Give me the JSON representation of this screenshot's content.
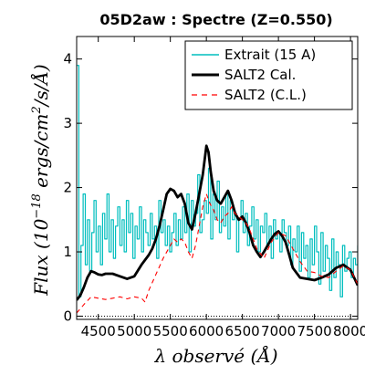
{
  "chart_data": {
    "type": "line",
    "title": "05D2aw : Spectre (Z=0.550)",
    "xlabel": "λ observé (Å)",
    "ylabel": "Flux (10^-18 ergs/cm²/s/Å)",
    "ylabel_parts": {
      "a": "Flux (10",
      "exp": "−18",
      "b": " ergs/cm",
      "sq": "2",
      "c": "/s/Å)"
    },
    "xlim": [
      4200,
      8100
    ],
    "ylim": [
      -0.05,
      4.35
    ],
    "xticks": [
      4500,
      5000,
      5500,
      6000,
      6500,
      7000,
      7500,
      8000
    ],
    "xtick_labels": [
      "4500",
      "5000",
      "5500",
      "6000",
      "6500",
      "7000",
      "7500",
      "8000"
    ],
    "yticks": [
      0,
      1,
      2,
      3,
      4
    ],
    "ytick_labels": [
      "0",
      "1",
      "2",
      "3",
      "4"
    ],
    "legend_position": "top-right",
    "series": [
      {
        "name": "Extrait (15 A)",
        "color": "#00bebe",
        "style": "solid",
        "x": [
          4200,
          4230,
          4260,
          4290,
          4320,
          4350,
          4380,
          4410,
          4440,
          4470,
          4500,
          4530,
          4560,
          4590,
          4620,
          4650,
          4680,
          4710,
          4740,
          4770,
          4800,
          4830,
          4860,
          4890,
          4920,
          4950,
          4980,
          5010,
          5040,
          5070,
          5100,
          5130,
          5160,
          5190,
          5220,
          5250,
          5280,
          5310,
          5340,
          5370,
          5400,
          5430,
          5460,
          5490,
          5520,
          5550,
          5580,
          5610,
          5640,
          5670,
          5700,
          5730,
          5760,
          5790,
          5820,
          5850,
          5880,
          5910,
          5940,
          5970,
          6000,
          6030,
          6060,
          6090,
          6120,
          6150,
          6180,
          6210,
          6240,
          6270,
          6300,
          6330,
          6360,
          6390,
          6420,
          6450,
          6480,
          6510,
          6540,
          6570,
          6600,
          6630,
          6660,
          6690,
          6720,
          6750,
          6780,
          6810,
          6840,
          6870,
          6900,
          6930,
          6960,
          6990,
          7020,
          7050,
          7080,
          7110,
          7140,
          7170,
          7200,
          7230,
          7260,
          7290,
          7320,
          7350,
          7380,
          7410,
          7440,
          7470,
          7500,
          7530,
          7560,
          7590,
          7620,
          7650,
          7680,
          7710,
          7740,
          7770,
          7800,
          7830,
          7860,
          7890,
          7920,
          7950,
          7980,
          8010,
          8040,
          8070,
          8100
        ],
        "y": [
          3.9,
          0.3,
          1.1,
          1.9,
          0.8,
          1.5,
          0.7,
          1.3,
          1.8,
          1.0,
          1.4,
          0.8,
          1.6,
          1.2,
          1.9,
          1.0,
          1.5,
          0.9,
          1.4,
          1.7,
          1.1,
          1.5,
          1.0,
          1.8,
          1.3,
          1.6,
          0.9,
          1.4,
          1.2,
          1.7,
          1.0,
          1.5,
          1.3,
          1.1,
          1.6,
          1.2,
          1.4,
          0.9,
          1.8,
          1.3,
          1.5,
          1.1,
          1.4,
          1.0,
          1.3,
          1.6,
          1.1,
          1.5,
          1.2,
          1.7,
          1.3,
          1.9,
          1.0,
          1.8,
          1.4,
          1.6,
          2.2,
          1.3,
          1.5,
          1.8,
          1.6,
          2.3,
          1.2,
          1.9,
          1.5,
          2.1,
          1.3,
          1.7,
          1.4,
          1.9,
          1.2,
          1.8,
          1.5,
          1.6,
          1.0,
          1.5,
          1.8,
          1.3,
          1.6,
          1.1,
          1.4,
          1.7,
          1.2,
          1.5,
          1.0,
          1.4,
          1.3,
          1.6,
          1.1,
          1.4,
          0.9,
          1.5,
          1.2,
          1.3,
          1.0,
          1.5,
          1.3,
          1.1,
          1.4,
          0.8,
          1.2,
          1.0,
          1.4,
          0.7,
          1.3,
          0.9,
          1.1,
          0.6,
          1.2,
          0.8,
          1.4,
          1.0,
          0.5,
          1.3,
          0.7,
          1.1,
          0.9,
          0.4,
          1.2,
          0.6,
          1.0,
          0.8,
          0.3,
          1.1,
          0.7,
          0.9,
          1.0,
          0.6,
          0.9,
          0.8,
          1.1
        ]
      },
      {
        "name": "SALT2 Cal.",
        "color": "#000000",
        "style": "solid",
        "x": [
          4200,
          4250,
          4300,
          4350,
          4400,
          4450,
          4500,
          4550,
          4600,
          4700,
          4800,
          4900,
          5000,
          5100,
          5200,
          5250,
          5300,
          5350,
          5400,
          5450,
          5500,
          5550,
          5600,
          5650,
          5700,
          5750,
          5800,
          5850,
          5900,
          5950,
          6000,
          6030,
          6060,
          6100,
          6150,
          6200,
          6250,
          6300,
          6350,
          6400,
          6450,
          6500,
          6550,
          6600,
          6650,
          6700,
          6750,
          6800,
          6850,
          6900,
          6950,
          7000,
          7050,
          7100,
          7150,
          7200,
          7300,
          7400,
          7500,
          7600,
          7700,
          7800,
          7900,
          8000,
          8100
        ],
        "y": [
          0.25,
          0.32,
          0.45,
          0.6,
          0.7,
          0.68,
          0.65,
          0.64,
          0.66,
          0.66,
          0.62,
          0.58,
          0.62,
          0.8,
          0.95,
          1.05,
          1.2,
          1.4,
          1.65,
          1.9,
          1.98,
          1.95,
          1.85,
          1.9,
          1.75,
          1.45,
          1.35,
          1.6,
          1.9,
          2.2,
          2.65,
          2.55,
          2.25,
          1.95,
          1.8,
          1.75,
          1.85,
          1.95,
          1.8,
          1.6,
          1.5,
          1.55,
          1.45,
          1.3,
          1.1,
          1.0,
          0.92,
          1.0,
          1.1,
          1.2,
          1.28,
          1.32,
          1.25,
          1.15,
          0.95,
          0.75,
          0.6,
          0.58,
          0.56,
          0.6,
          0.65,
          0.75,
          0.8,
          0.72,
          0.48
        ]
      },
      {
        "name": "SALT2 (C.L.)",
        "color": "#ff0000",
        "style": "dashed",
        "x": [
          4200,
          4300,
          4400,
          4500,
          4600,
          4700,
          4800,
          4900,
          5000,
          5100,
          5150,
          5200,
          5300,
          5400,
          5500,
          5550,
          5600,
          5650,
          5700,
          5750,
          5800,
          5850,
          5900,
          5950,
          6000,
          6050,
          6100,
          6150,
          6200,
          6250,
          6300,
          6350,
          6400,
          6450,
          6500,
          6550,
          6600,
          6650,
          6700,
          6800,
          6900,
          7000,
          7100,
          7200,
          7300,
          7400,
          7500,
          7600,
          7700,
          7800,
          7900,
          8000,
          8100
        ],
        "y": [
          0.05,
          0.18,
          0.3,
          0.28,
          0.26,
          0.28,
          0.3,
          0.27,
          0.3,
          0.28,
          0.22,
          0.4,
          0.65,
          0.9,
          1.1,
          1.2,
          1.15,
          1.2,
          1.15,
          1.0,
          0.9,
          1.1,
          1.4,
          1.7,
          1.9,
          1.75,
          1.65,
          1.5,
          1.45,
          1.55,
          1.6,
          1.7,
          1.6,
          1.55,
          1.5,
          1.45,
          1.35,
          1.2,
          1.05,
          0.9,
          1.15,
          1.3,
          1.25,
          1.05,
          0.85,
          0.7,
          0.68,
          0.62,
          0.6,
          0.7,
          0.78,
          0.72,
          0.5
        ]
      }
    ]
  }
}
